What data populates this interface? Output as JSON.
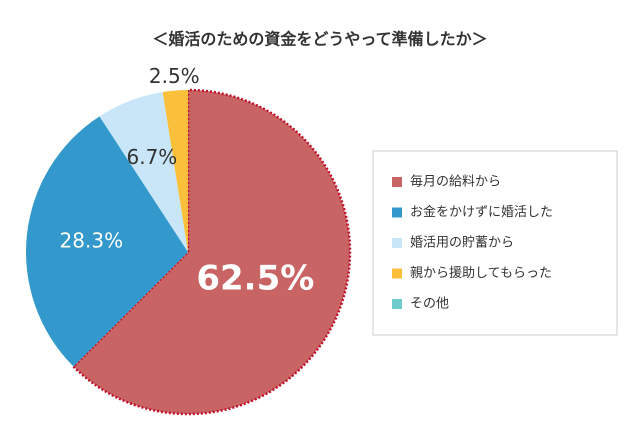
{
  "chart_data": {
    "type": "pie",
    "title": "＜婚活のための資金をどうやって準備したか＞",
    "categories": [
      "毎月の給料から",
      "お金をかけずに婚活した",
      "婚活用の貯蓄から",
      "親から援助してもらった",
      "その他"
    ],
    "values": [
      62.5,
      28.3,
      6.7,
      2.5,
      0
    ],
    "value_labels": [
      "62.5%",
      "28.3%",
      "6.7%",
      "2.5%",
      null
    ],
    "colors": [
      "#c86464",
      "#3399cc",
      "#c8e6f8",
      "#fac03c",
      "#70cccc"
    ],
    "legend": "right"
  }
}
